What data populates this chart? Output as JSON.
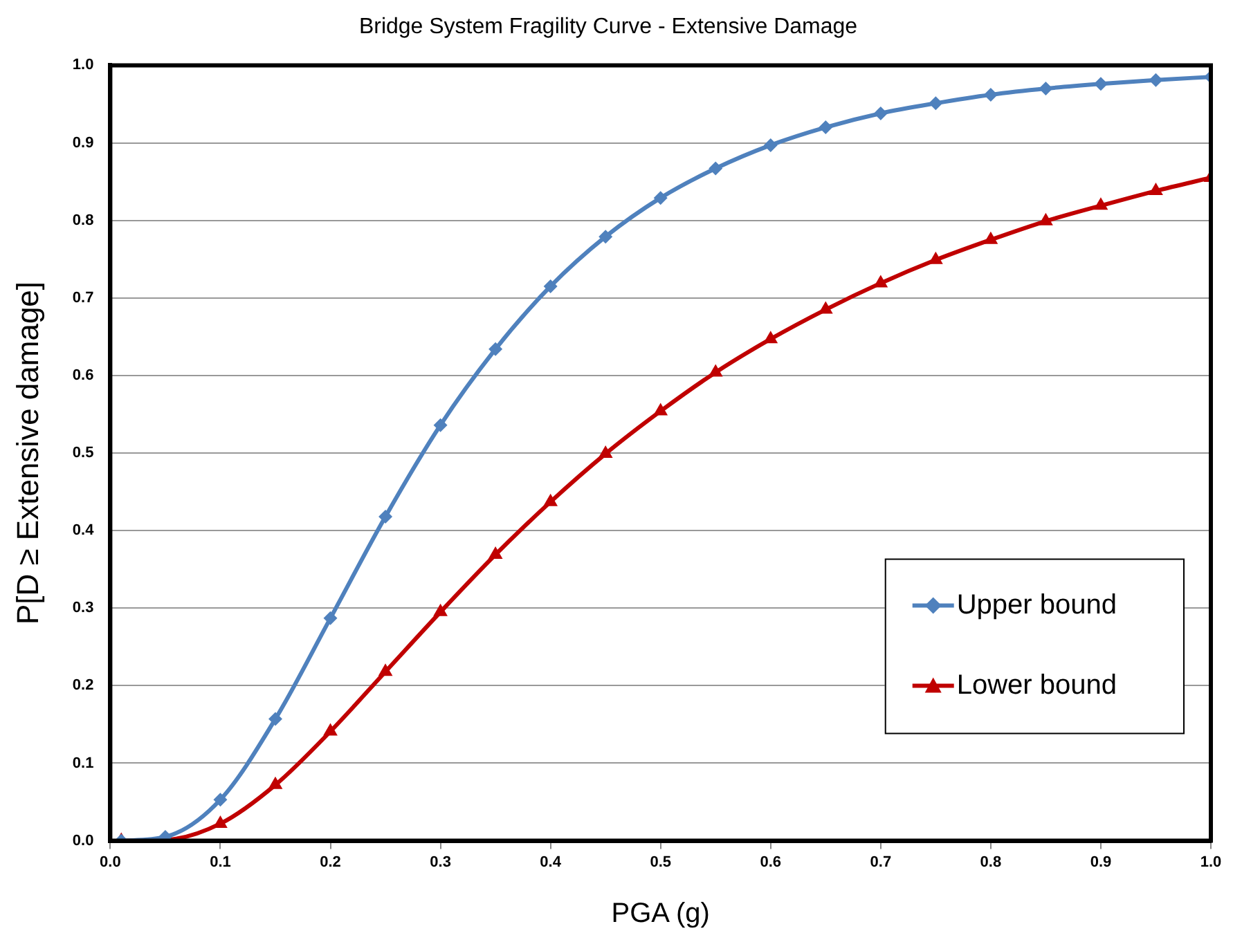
{
  "chart_data": {
    "type": "line",
    "title": "Bridge System Fragility Curve - Extensive Damage",
    "xlabel": "PGA (g)",
    "ylabel": "P[D ≥ Extensive damage]",
    "x": [
      0.01,
      0.05,
      0.1,
      0.15,
      0.2,
      0.25,
      0.3,
      0.35,
      0.4,
      0.45,
      0.5,
      0.55,
      0.6,
      0.65,
      0.7,
      0.75,
      0.8,
      0.85,
      0.9,
      0.95,
      1.0
    ],
    "series": [
      {
        "name": "Upper bound",
        "color": "#4f81bd",
        "marker": "diamond",
        "values": [
          0,
          0.005,
          0.053,
          0.157,
          0.287,
          0.418,
          0.536,
          0.634,
          0.715,
          0.779,
          0.829,
          0.867,
          0.897,
          0.92,
          0.938,
          0.951,
          0.962,
          0.97,
          0.976,
          0.981,
          0.985
        ]
      },
      {
        "name": "Lower bound",
        "color": "#c00000",
        "marker": "triangle",
        "values": [
          0,
          0.001,
          0.022,
          0.072,
          0.141,
          0.218,
          0.295,
          0.369,
          0.437,
          0.499,
          0.554,
          0.604,
          0.647,
          0.685,
          0.719,
          0.749,
          0.775,
          0.799,
          0.819,
          0.838,
          0.855
        ]
      }
    ],
    "xlim": [
      0,
      1
    ],
    "xticks": [
      {
        "value": 0,
        "label": "0.0"
      },
      0.1,
      0.2,
      0.3,
      0.4,
      0.5,
      0.6,
      0.7,
      0.8,
      0.9,
      {
        "value": 1,
        "label": "1.0"
      }
    ],
    "ylim": [
      0,
      1
    ],
    "yticks": [
      {
        "value": 0,
        "label": "0.0"
      },
      0.1,
      0.2,
      0.3,
      0.4,
      0.5,
      0.6,
      0.7,
      0.8,
      0.9,
      {
        "value": 1,
        "label": "1.0"
      }
    ],
    "grid": "y",
    "legend": "bottom right",
    "line_style": "solid"
  }
}
